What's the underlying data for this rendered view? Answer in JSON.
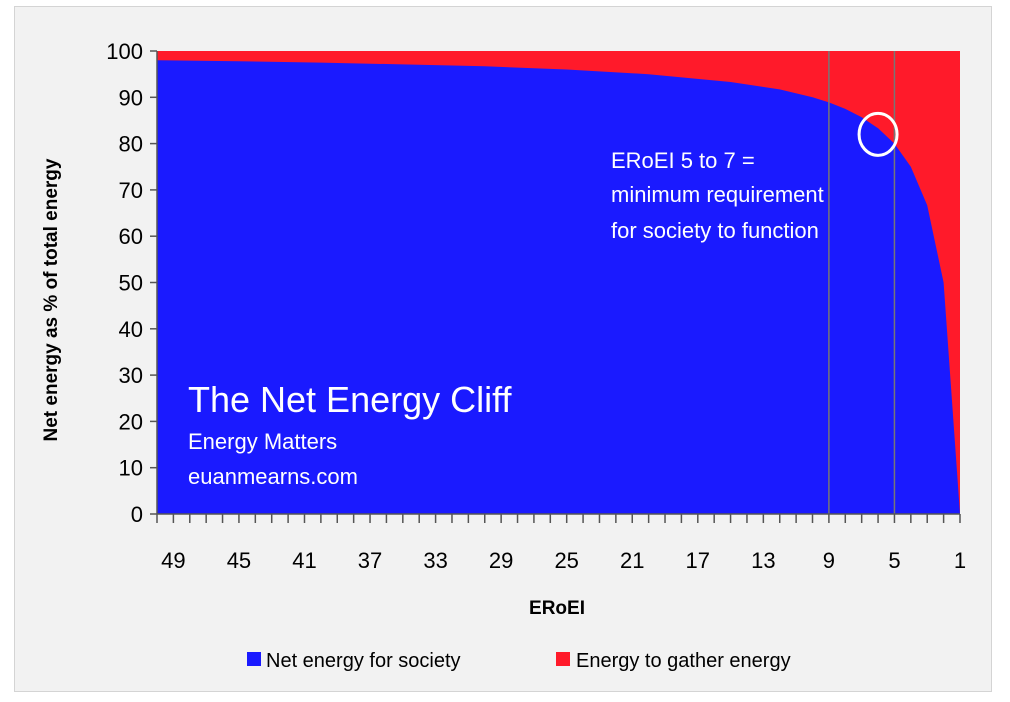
{
  "chart_data": {
    "type": "area",
    "title": "The Net Energy Cliff",
    "subtitle_lines": [
      "Energy Matters",
      "euanmearns.com"
    ],
    "annotation_lines": [
      "ERoEI 5 to 7 =",
      "minimum requirement",
      "for society to function"
    ],
    "xlabel": "ERoEI",
    "ylabel": "Net energy as % of total energy",
    "x_reversed": true,
    "xlim": [
      50,
      1
    ],
    "ylim": [
      0,
      100
    ],
    "x_ticks": [
      49,
      45,
      41,
      37,
      33,
      29,
      25,
      21,
      17,
      13,
      9,
      5,
      1
    ],
    "y_ticks": [
      0,
      10,
      20,
      30,
      40,
      50,
      60,
      70,
      80,
      90,
      100
    ],
    "vertical_lines": [
      9,
      5
    ],
    "highlight_circle": {
      "x": 6,
      "y": 82
    },
    "series": [
      {
        "name": "Net energy for society",
        "color": "#1a1aff",
        "x": [
          50,
          45,
          40,
          35,
          30,
          25,
          20,
          15,
          12,
          10,
          9,
          8,
          7,
          6,
          5,
          4,
          3,
          2,
          1
        ],
        "values": [
          98,
          97.8,
          97.5,
          97.1,
          96.7,
          96,
          95,
          93.3,
          91.7,
          90,
          88.9,
          87.5,
          85.7,
          83.3,
          80,
          75,
          66.7,
          50,
          0
        ]
      },
      {
        "name": "Energy to gather energy",
        "color": "#ff1a2a",
        "x": [
          50,
          45,
          40,
          35,
          30,
          25,
          20,
          15,
          12,
          10,
          9,
          8,
          7,
          6,
          5,
          4,
          3,
          2,
          1
        ],
        "values": [
          2,
          2.2,
          2.5,
          2.9,
          3.3,
          4,
          5,
          6.7,
          8.3,
          10,
          11.1,
          12.5,
          14.3,
          16.7,
          20,
          25,
          33.3,
          50,
          100
        ]
      }
    ],
    "legend": {
      "position": "bottom"
    },
    "grid": false
  }
}
